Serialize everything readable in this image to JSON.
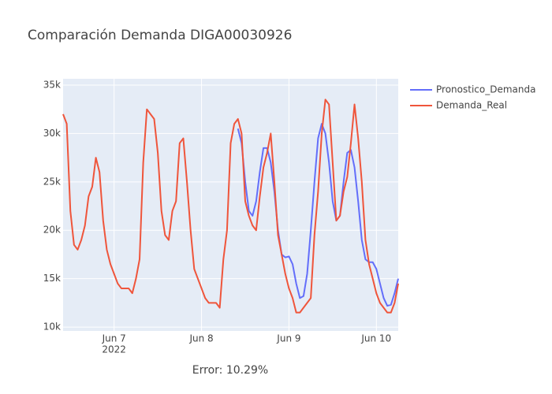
{
  "chart_data": {
    "type": "line",
    "title": "Comparación Demanda DIGA00030926",
    "annotation": "Error: 10.29%",
    "x": [
      "2022-06-06 10:00",
      "2022-06-06 11:00",
      "2022-06-06 12:00",
      "2022-06-06 13:00",
      "2022-06-06 14:00",
      "2022-06-06 15:00",
      "2022-06-06 16:00",
      "2022-06-06 17:00",
      "2022-06-06 18:00",
      "2022-06-06 19:00",
      "2022-06-06 20:00",
      "2022-06-06 21:00",
      "2022-06-06 22:00",
      "2022-06-06 23:00",
      "2022-06-07 00:00",
      "2022-06-07 01:00",
      "2022-06-07 02:00",
      "2022-06-07 03:00",
      "2022-06-07 04:00",
      "2022-06-07 05:00",
      "2022-06-07 06:00",
      "2022-06-07 07:00",
      "2022-06-07 08:00",
      "2022-06-07 09:00",
      "2022-06-07 10:00",
      "2022-06-07 11:00",
      "2022-06-07 12:00",
      "2022-06-07 13:00",
      "2022-06-07 14:00",
      "2022-06-07 15:00",
      "2022-06-07 16:00",
      "2022-06-07 17:00",
      "2022-06-07 18:00",
      "2022-06-07 19:00",
      "2022-06-07 20:00",
      "2022-06-07 21:00",
      "2022-06-07 22:00",
      "2022-06-07 23:00",
      "2022-06-08 00:00",
      "2022-06-08 01:00",
      "2022-06-08 02:00",
      "2022-06-08 03:00",
      "2022-06-08 04:00",
      "2022-06-08 05:00",
      "2022-06-08 06:00",
      "2022-06-08 07:00",
      "2022-06-08 08:00",
      "2022-06-08 09:00",
      "2022-06-08 10:00",
      "2022-06-08 11:00",
      "2022-06-08 12:00",
      "2022-06-08 13:00",
      "2022-06-08 14:00",
      "2022-06-08 15:00",
      "2022-06-08 16:00",
      "2022-06-08 17:00",
      "2022-06-08 18:00",
      "2022-06-08 19:00",
      "2022-06-08 20:00",
      "2022-06-08 21:00",
      "2022-06-08 22:00",
      "2022-06-08 23:00",
      "2022-06-09 00:00",
      "2022-06-09 01:00",
      "2022-06-09 02:00",
      "2022-06-09 03:00",
      "2022-06-09 04:00",
      "2022-06-09 05:00",
      "2022-06-09 06:00",
      "2022-06-09 07:00",
      "2022-06-09 08:00",
      "2022-06-09 09:00",
      "2022-06-09 10:00",
      "2022-06-09 11:00",
      "2022-06-09 12:00",
      "2022-06-09 13:00",
      "2022-06-09 14:00",
      "2022-06-09 15:00",
      "2022-06-09 16:00",
      "2022-06-09 17:00",
      "2022-06-09 18:00",
      "2022-06-09 19:00",
      "2022-06-09 20:00",
      "2022-06-09 21:00",
      "2022-06-09 22:00",
      "2022-06-09 23:00",
      "2022-06-10 00:00",
      "2022-06-10 01:00",
      "2022-06-10 02:00",
      "2022-06-10 03:00",
      "2022-06-10 04:00",
      "2022-06-10 05:00",
      "2022-06-10 06:00"
    ],
    "series": [
      {
        "name": "Pronostico_Demanda",
        "color": "#636efa",
        "values": [
          null,
          null,
          null,
          null,
          null,
          null,
          null,
          null,
          null,
          null,
          null,
          null,
          null,
          null,
          null,
          null,
          null,
          null,
          null,
          null,
          null,
          null,
          null,
          null,
          null,
          null,
          null,
          null,
          null,
          null,
          null,
          null,
          null,
          null,
          null,
          null,
          null,
          null,
          null,
          null,
          null,
          null,
          null,
          null,
          null,
          null,
          null,
          null,
          30500,
          29000,
          25000,
          22000,
          21500,
          23000,
          26000,
          28500,
          28500,
          27000,
          24000,
          20000,
          17500,
          17200,
          17300,
          16500,
          14500,
          13000,
          13200,
          15500,
          20000,
          25000,
          29500,
          31000,
          30000,
          27000,
          23000,
          21000,
          21500,
          25000,
          28000,
          28300,
          26500,
          23000,
          19000,
          17000,
          16700,
          16700,
          16000,
          14500,
          13000,
          12200,
          12300,
          13500,
          15000
        ]
      },
      {
        "name": "Demanda_Real",
        "color": "#ef553b",
        "values": [
          32000,
          31000,
          22000,
          18500,
          18000,
          19000,
          20500,
          23500,
          24500,
          27500,
          26000,
          21000,
          18000,
          16500,
          15500,
          14500,
          14000,
          14000,
          14000,
          13500,
          15000,
          17000,
          27000,
          32500,
          32000,
          31500,
          28000,
          22000,
          19500,
          19000,
          22000,
          23000,
          29000,
          29500,
          25000,
          20000,
          16000,
          15000,
          14000,
          13000,
          12500,
          12500,
          12500,
          12000,
          17000,
          20000,
          29000,
          31000,
          31500,
          30000,
          23000,
          21500,
          20500,
          20000,
          23500,
          26500,
          28000,
          30000,
          25000,
          19500,
          17500,
          15500,
          14000,
          13000,
          11500,
          11500,
          12000,
          12500,
          13000,
          19500,
          24000,
          30000,
          33500,
          33000,
          27000,
          21000,
          21500,
          24000,
          25500,
          29000,
          33000,
          29500,
          25000,
          19000,
          16500,
          15000,
          13500,
          12500,
          12000,
          11500,
          11500,
          12500,
          14500
        ]
      }
    ],
    "xlim": [
      "2022-06-06 10:00",
      "2022-06-10 06:00"
    ],
    "xticks": [
      {
        "value": "2022-06-07 00:00",
        "label": "Jun 7"
      },
      {
        "value": "2022-06-08 00:00",
        "label": "Jun 8"
      },
      {
        "value": "2022-06-09 00:00",
        "label": "Jun 9"
      },
      {
        "value": "2022-06-10 00:00",
        "label": "Jun 10"
      }
    ],
    "xtick_year": "2022",
    "ylim": [
      9600,
      35650
    ],
    "yticks": [
      {
        "value": 10000,
        "label": "10k"
      },
      {
        "value": 15000,
        "label": "15k"
      },
      {
        "value": 20000,
        "label": "20k"
      },
      {
        "value": 25000,
        "label": "25k"
      },
      {
        "value": 30000,
        "label": "30k"
      },
      {
        "value": 35000,
        "label": "35k"
      }
    ],
    "grid": true
  }
}
